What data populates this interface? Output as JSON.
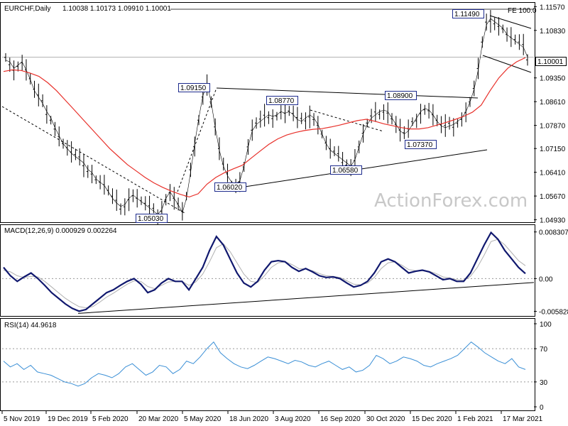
{
  "header": {
    "symbol": "EURCHF,Daily",
    "ohlc": "1.10038 1.10173 1.09910 1.10001"
  },
  "watermark": "ActionForex.com",
  "colors": {
    "price": "#000000",
    "sma": "#e8302a",
    "macd": "#10186e",
    "signal": "#b0b0b0",
    "rsi": "#3a8fd6",
    "grid_dash": "#9a9a9a",
    "label_border": "#1c2a8c",
    "current_bg": "#ffffff"
  },
  "chart_data": [
    {
      "type": "line",
      "pane": "price",
      "title": "EURCHF,Daily",
      "ylim": [
        1.0492,
        1.116
      ],
      "y_ticks": [
        "1.11570",
        "1.10830",
        "1.10000",
        "1.09350",
        "1.08610",
        "1.07870",
        "1.07150",
        "1.06410",
        "1.05670",
        "1.04930"
      ],
      "x_ticks": [
        "5 Nov 2019",
        "19 Dec 2019",
        "5 Feb 2020",
        "20 Mar 2020",
        "5 May 2020",
        "18 Jun 2020",
        "3 Aug 2020",
        "16 Sep 2020",
        "30 Oct 2020",
        "15 Dec 2020",
        "1 Feb 2021",
        "17 Mar 2021"
      ],
      "series": [
        {
          "values": [
            1.099,
            1.0985,
            1.0965,
            1.0975,
            1.0985,
            1.096,
            1.093,
            1.0895,
            1.0875,
            1.0855,
            1.083,
            1.081,
            1.078,
            1.0755,
            1.073,
            1.0715,
            1.07,
            1.069,
            1.068,
            1.067,
            1.065,
            1.064,
            1.062,
            1.061,
            1.06,
            1.058,
            1.056,
            1.0545,
            1.0535,
            1.054,
            1.056,
            1.057,
            1.056,
            1.055,
            1.054,
            1.053,
            1.052,
            1.051,
            1.0525,
            1.056,
            1.058,
            1.056,
            1.054,
            1.0515,
            1.056,
            1.064,
            1.073,
            1.081,
            1.088,
            1.0915,
            1.086,
            1.078,
            1.071,
            1.066,
            1.063,
            1.061,
            1.0605,
            1.0615,
            1.066,
            1.072,
            1.077,
            1.079,
            1.08,
            1.081,
            1.082,
            1.0815,
            1.082,
            1.083,
            1.0825,
            1.083,
            1.082,
            1.0805,
            1.08,
            1.081,
            1.082,
            1.081,
            1.079,
            1.076,
            1.073,
            1.071,
            1.07,
            1.069,
            1.068,
            1.067,
            1.066,
            1.068,
            1.072,
            1.076,
            1.079,
            1.081,
            1.082,
            1.083,
            1.0835,
            1.083,
            1.081,
            1.079,
            1.077,
            1.076,
            1.077,
            1.079,
            1.081,
            1.083,
            1.084,
            1.0835,
            1.082,
            1.08,
            1.0785,
            1.078,
            1.0785,
            1.079,
            1.08,
            1.081,
            1.083,
            1.086,
            1.09,
            1.096,
            1.104,
            1.11,
            1.112,
            1.111,
            1.11,
            1.109,
            1.107,
            1.106,
            1.105,
            1.104,
            1.103,
            1.1
          ]
        },
        {
          "name": "",
          "values": [
            1.0955,
            1.096,
            1.0958,
            1.095,
            1.094,
            1.092,
            1.0895,
            1.0865,
            1.0835,
            1.0805,
            1.0775,
            1.0745,
            1.0715,
            1.069,
            1.0665,
            1.0645,
            1.0625,
            1.0608,
            1.0594,
            1.0582,
            1.0572,
            1.0564,
            1.0574,
            1.0604,
            1.0625,
            1.064,
            1.0652,
            1.0663,
            1.0685,
            1.0707,
            1.0728,
            1.0745,
            1.0757,
            1.0765,
            1.0771,
            1.0775,
            1.0777,
            1.0782,
            1.0788,
            1.0795,
            1.0802,
            1.0806,
            1.08,
            1.0792,
            1.0786,
            1.078,
            1.0776,
            1.0776,
            1.078,
            1.0788,
            1.0796,
            1.0805,
            1.0815,
            1.0828,
            1.085,
            1.0895,
            1.0935,
            1.0965,
            1.0985,
            1.0998
          ]
        }
      ],
      "annotations": {
        "price_labels": [
          "1.11490",
          "1.09150",
          "1.08770",
          "1.08900",
          "1.06020",
          "1.05030",
          "1.07370",
          "1.06580"
        ],
        "fe_label": "FE 100.0",
        "current_price": "1.10001"
      }
    },
    {
      "type": "line",
      "pane": "macd",
      "title": "MACD(12,26,9) 0.000929 0.002264",
      "ylim": [
        -0.0064,
        0.0089
      ],
      "y_ticks": [
        "0.008307",
        "0.00",
        "-0.005828"
      ],
      "series": [
        {
          "values": [
            0.002,
            0.0005,
            -0.0005,
            0.0003,
            0.001,
            0.0,
            -0.0012,
            -0.0025,
            -0.0035,
            -0.0045,
            -0.0053,
            -0.0058,
            -0.0055,
            -0.0045,
            -0.0035,
            -0.0025,
            -0.002,
            -0.0012,
            -0.0005,
            0.0,
            -0.001,
            -0.0025,
            -0.002,
            -0.0008,
            0.0,
            -0.0005,
            -0.0005,
            -0.002,
            0.0,
            0.002,
            0.005,
            0.0075,
            0.006,
            0.0035,
            0.001,
            -0.0008,
            -0.0015,
            -0.0005,
            0.0015,
            0.003,
            0.0032,
            0.003,
            0.002,
            0.0013,
            0.0018,
            0.0012,
            0.0005,
            0.0002,
            0.0003,
            0.0,
            -0.0008,
            -0.0015,
            -0.0012,
            -0.0005,
            0.001,
            0.003,
            0.0035,
            0.003,
            0.002,
            0.001,
            0.0013,
            0.0015,
            0.0012,
            0.0005,
            -0.0002,
            0.0,
            -0.0005,
            -0.0005,
            0.001,
            0.0035,
            0.006,
            0.0082,
            0.007,
            0.005,
            0.0035,
            0.002,
            0.0009
          ]
        },
        {
          "values": [
            0.0015,
            0.0012,
            0.0005,
            0.0002,
            0.0004,
            0.0003,
            -0.0005,
            -0.0015,
            -0.0025,
            -0.0035,
            -0.0043,
            -0.005,
            -0.0052,
            -0.005,
            -0.0042,
            -0.0033,
            -0.0026,
            -0.0018,
            -0.001,
            -0.0004,
            -0.0005,
            -0.0014,
            -0.0018,
            -0.0012,
            -0.0006,
            -0.0005,
            -0.0005,
            -0.0012,
            -0.0006,
            0.0008,
            0.003,
            0.0055,
            0.0062,
            0.0048,
            0.0028,
            0.0008,
            -0.0005,
            -0.0007,
            0.0005,
            0.002,
            0.0028,
            0.003,
            0.0025,
            0.0018,
            0.0017,
            0.0014,
            0.0009,
            0.0005,
            0.0004,
            0.0002,
            -0.0004,
            -0.001,
            -0.0011,
            -0.0008,
            0.0002,
            0.0018,
            0.0028,
            0.003,
            0.0024,
            0.0016,
            0.0014,
            0.0014,
            0.0013,
            0.0009,
            0.0003,
            0.0001,
            -0.0002,
            -0.0003,
            0.0004,
            0.002,
            0.0042,
            0.0066,
            0.007,
            0.006,
            0.0046,
            0.0032,
            0.0023
          ]
        }
      ]
    },
    {
      "type": "line",
      "pane": "rsi",
      "title": "RSI(14) 44.9618",
      "ylim": [
        0,
        100
      ],
      "y_ticks": [
        "100",
        "70",
        "30",
        "0"
      ],
      "series": [
        {
          "values": [
            55,
            48,
            52,
            45,
            50,
            42,
            40,
            38,
            34,
            30,
            28,
            25,
            28,
            35,
            40,
            38,
            35,
            40,
            48,
            52,
            45,
            38,
            42,
            50,
            48,
            40,
            45,
            55,
            52,
            60,
            70,
            78,
            65,
            58,
            52,
            48,
            46,
            50,
            55,
            60,
            58,
            55,
            52,
            56,
            54,
            50,
            48,
            52,
            55,
            50,
            45,
            48,
            42,
            44,
            50,
            62,
            58,
            52,
            55,
            60,
            58,
            55,
            50,
            48,
            52,
            55,
            58,
            62,
            70,
            78,
            72,
            65,
            60,
            55,
            52,
            58,
            48,
            45
          ]
        }
      ]
    }
  ]
}
